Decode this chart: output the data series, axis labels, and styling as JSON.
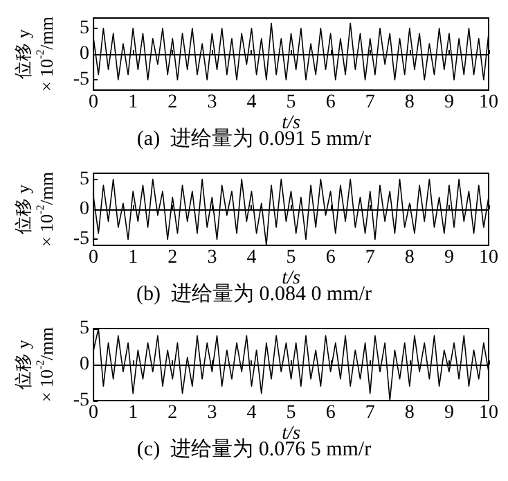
{
  "chart_data": [
    {
      "type": "line",
      "title": "(a)  进给量为 0.091 5 mm/r",
      "xlabel": "t/s",
      "ylabel": "位移 y\n× 10$^{-2}$/mm",
      "xlim": [
        0,
        10
      ],
      "xticks": [
        0,
        1,
        2,
        3,
        4,
        5,
        6,
        7,
        8,
        9,
        10
      ],
      "ylim": [
        -7,
        7
      ],
      "yticks": [
        -5,
        0,
        5
      ],
      "x": [
        0,
        0.125,
        0.25,
        0.375,
        0.5,
        0.625,
        0.75,
        0.875,
        1,
        1.125,
        1.25,
        1.375,
        1.5,
        1.625,
        1.75,
        1.875,
        2,
        2.125,
        2.25,
        2.375,
        2.5,
        2.625,
        2.75,
        2.875,
        3,
        3.125,
        3.25,
        3.375,
        3.5,
        3.625,
        3.75,
        3.875,
        4,
        4.125,
        4.25,
        4.375,
        4.5,
        4.625,
        4.75,
        4.875,
        5,
        5.125,
        5.25,
        5.375,
        5.5,
        5.625,
        5.75,
        5.875,
        6,
        6.125,
        6.25,
        6.375,
        6.5,
        6.625,
        6.75,
        6.875,
        7,
        7.125,
        7.25,
        7.375,
        7.5,
        7.625,
        7.75,
        7.875,
        8,
        8.125,
        8.25,
        8.375,
        8.5,
        8.625,
        8.75,
        8.875,
        9,
        9.125,
        9.25,
        9.375,
        9.5,
        9.625,
        9.75,
        9.875,
        10
      ],
      "series": [
        {
          "color": "#000000",
          "values": [
            3,
            -4,
            5,
            -3,
            4,
            -5,
            2,
            -4,
            5,
            -3,
            4,
            -5,
            3,
            -2,
            5,
            -4,
            3,
            -5,
            4,
            -3,
            5,
            -4,
            2,
            -5,
            4,
            -3,
            5,
            -4,
            3,
            -5,
            4,
            -2,
            5,
            -4,
            3,
            -5,
            6,
            -4,
            3,
            -5,
            4,
            -3,
            5,
            -5,
            2,
            -4,
            5,
            -3,
            4,
            -5,
            3,
            -4,
            6,
            -3,
            4,
            -5,
            3,
            -4,
            5,
            -2,
            4,
            -5,
            3,
            -4,
            5,
            -3,
            4,
            -5,
            2,
            -4,
            5,
            -3,
            4,
            -5,
            3,
            -4,
            5,
            -4,
            3,
            -5,
            4
          ]
        }
      ]
    },
    {
      "type": "line",
      "title": "(b)  进给量为 0.084 0 mm/r",
      "xlabel": "t/s",
      "ylabel": "位移 y\n× 10$^{-2}$/mm",
      "xlim": [
        0,
        10
      ],
      "xticks": [
        0,
        1,
        2,
        3,
        4,
        5,
        6,
        7,
        8,
        9,
        10
      ],
      "ylim": [
        -6,
        6
      ],
      "yticks": [
        -5,
        0,
        5
      ],
      "x": [
        0,
        0.125,
        0.25,
        0.375,
        0.5,
        0.625,
        0.75,
        0.875,
        1,
        1.125,
        1.25,
        1.375,
        1.5,
        1.625,
        1.75,
        1.875,
        2,
        2.125,
        2.25,
        2.375,
        2.5,
        2.625,
        2.75,
        2.875,
        3,
        3.125,
        3.25,
        3.375,
        3.5,
        3.625,
        3.75,
        3.875,
        4,
        4.125,
        4.25,
        4.375,
        4.5,
        4.625,
        4.75,
        4.875,
        5,
        5.125,
        5.25,
        5.375,
        5.5,
        5.625,
        5.75,
        5.875,
        6,
        6.125,
        6.25,
        6.375,
        6.5,
        6.625,
        6.75,
        6.875,
        7,
        7.125,
        7.25,
        7.375,
        7.5,
        7.625,
        7.75,
        7.875,
        8,
        8.125,
        8.25,
        8.375,
        8.5,
        8.625,
        8.75,
        8.875,
        9,
        9.125,
        9.25,
        9.375,
        9.5,
        9.625,
        9.75,
        9.875,
        10
      ],
      "series": [
        {
          "color": "#000000",
          "values": [
            2,
            -4,
            4,
            -2,
            5,
            -3,
            1,
            -5,
            3,
            -2,
            4,
            -3,
            5,
            -1,
            3,
            -5,
            2,
            -4,
            4,
            -2,
            3,
            -4,
            5,
            -3,
            2,
            -5,
            4,
            -1,
            3,
            -4,
            5,
            -2,
            3,
            -4,
            1,
            -6,
            4,
            -3,
            5,
            -2,
            3,
            -4,
            2,
            -5,
            4,
            -3,
            5,
            -1,
            3,
            -4,
            4,
            -2,
            5,
            -3,
            2,
            -4,
            3,
            -5,
            4,
            -2,
            3,
            -4,
            5,
            -3,
            1,
            -4,
            4,
            -2,
            5,
            -3,
            2,
            -4,
            4,
            -3,
            5,
            -2,
            3,
            -4,
            4,
            -3,
            2
          ]
        }
      ]
    },
    {
      "type": "line",
      "title": "(c)  进给量为 0.076 5 mm/r",
      "xlabel": "t/s",
      "ylabel": "位移 y\n× 10$^{-2}$/mm",
      "xlim": [
        0,
        10
      ],
      "xticks": [
        0,
        1,
        2,
        3,
        4,
        5,
        6,
        7,
        8,
        9,
        10
      ],
      "ylim": [
        -5,
        5
      ],
      "yticks": [
        -5,
        0,
        5
      ],
      "x": [
        0,
        0.125,
        0.25,
        0.375,
        0.5,
        0.625,
        0.75,
        0.875,
        1,
        1.125,
        1.25,
        1.375,
        1.5,
        1.625,
        1.75,
        1.875,
        2,
        2.125,
        2.25,
        2.375,
        2.5,
        2.625,
        2.75,
        2.875,
        3,
        3.125,
        3.25,
        3.375,
        3.5,
        3.625,
        3.75,
        3.875,
        4,
        4.125,
        4.25,
        4.375,
        4.5,
        4.625,
        4.75,
        4.875,
        5,
        5.125,
        5.25,
        5.375,
        5.5,
        5.625,
        5.75,
        5.875,
        6,
        6.125,
        6.25,
        6.375,
        6.5,
        6.625,
        6.75,
        6.875,
        7,
        7.125,
        7.25,
        7.375,
        7.5,
        7.625,
        7.75,
        7.875,
        8,
        8.125,
        8.25,
        8.375,
        8.5,
        8.625,
        8.75,
        8.875,
        9,
        9.125,
        9.25,
        9.375,
        9.5,
        9.625,
        9.75,
        9.875,
        10
      ],
      "series": [
        {
          "color": "#000000",
          "values": [
            2,
            5,
            -3,
            3,
            -2,
            4,
            -1,
            3,
            -4,
            2,
            -2,
            3,
            -1,
            4,
            -3,
            2,
            -2,
            3,
            -4,
            1,
            -3,
            4,
            -2,
            3,
            -1,
            4,
            -3,
            2,
            -2,
            3,
            -1,
            4,
            -3,
            2,
            -4,
            3,
            -2,
            4,
            -1,
            3,
            -2,
            3,
            -3,
            4,
            -2,
            2,
            -3,
            4,
            -1,
            3,
            -2,
            4,
            -3,
            2,
            -2,
            3,
            -4,
            4,
            -1,
            3,
            -5,
            2,
            -2,
            3,
            -3,
            4,
            -1,
            3,
            -2,
            4,
            -3,
            2,
            -1,
            3,
            -2,
            4,
            -3,
            2,
            -2,
            3,
            -1
          ]
        }
      ]
    }
  ]
}
